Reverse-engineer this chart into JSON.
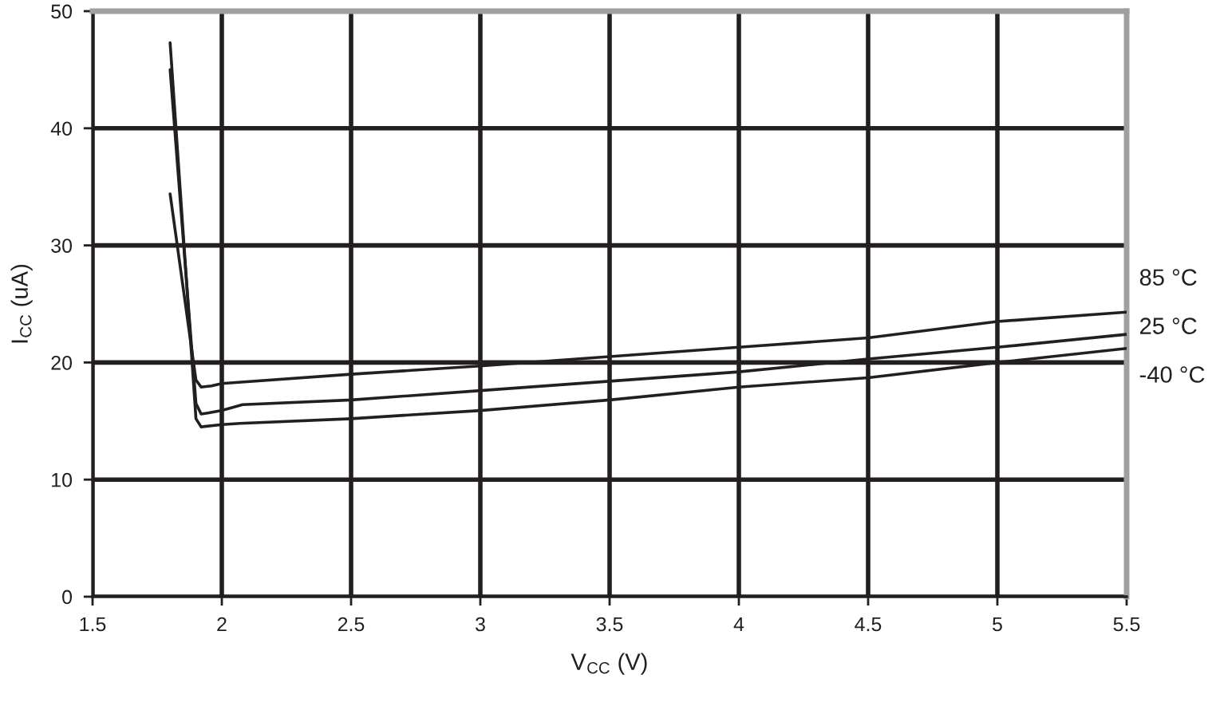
{
  "chart_data": {
    "type": "line",
    "xlabel": "V$_{CC}$ (V)",
    "ylabel": "I$_{CC}$ (uA)",
    "xlim": [
      1.5,
      5.5
    ],
    "xticks": [
      1.5,
      2,
      2.5,
      3,
      3.5,
      4,
      4.5,
      5,
      5.5
    ],
    "ylim": [
      0,
      50
    ],
    "yticks": [
      0,
      10,
      20,
      30,
      40,
      50
    ],
    "grid": true,
    "line_style": "solid",
    "series": [
      {
        "name": "85 °C",
        "color": "#231f20",
        "x": [
          1.8,
          1.9,
          1.92,
          1.96,
          2.0,
          2.5,
          3.0,
          3.5,
          4.0,
          4.5,
          5.0,
          5.5
        ],
        "values": [
          34.4,
          18.5,
          17.9,
          18.0,
          18.2,
          19.0,
          19.7,
          20.5,
          21.3,
          22.1,
          23.5,
          24.3
        ]
      },
      {
        "name": "25 °C",
        "color": "#231f20",
        "x": [
          1.8,
          1.9,
          1.92,
          1.95,
          2.0,
          2.08,
          2.5,
          3.0,
          3.5,
          4.0,
          4.5,
          5.0,
          5.5
        ],
        "values": [
          45.0,
          16.5,
          15.6,
          15.7,
          15.9,
          16.4,
          16.8,
          17.6,
          18.4,
          19.2,
          20.3,
          21.3,
          22.4
        ]
      },
      {
        "name": "-40 °C",
        "color": "#231f20",
        "x": [
          1.8,
          1.9,
          1.92,
          2.0,
          2.07,
          2.5,
          3.0,
          3.5,
          4.0,
          4.5,
          5.0,
          5.5
        ],
        "values": [
          47.3,
          15.2,
          14.5,
          14.7,
          14.8,
          15.2,
          15.9,
          16.8,
          17.9,
          18.7,
          20.0,
          21.2
        ]
      }
    ]
  }
}
